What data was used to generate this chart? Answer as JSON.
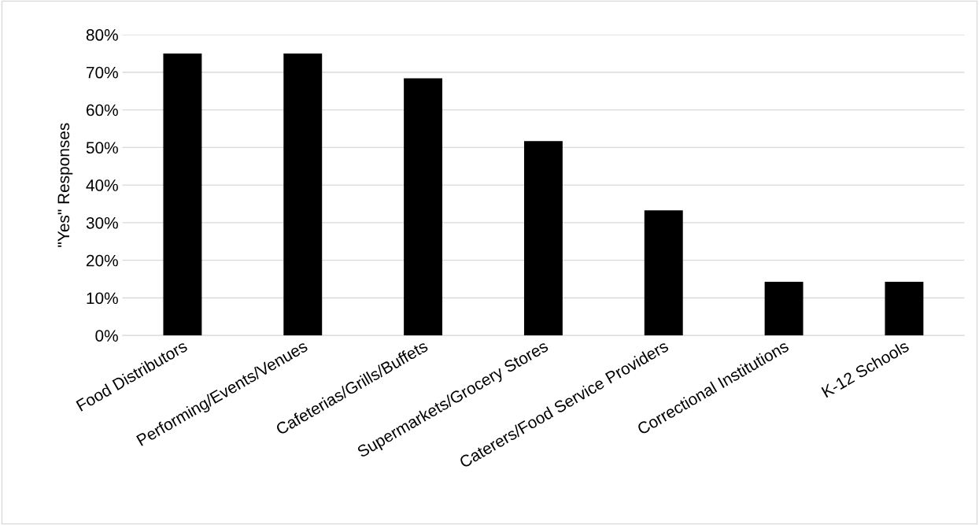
{
  "chart_data": {
    "type": "bar",
    "ylabel": "\"Yes\" Responses",
    "categories": [
      "Food Distributors",
      "Performing/Events/Venues",
      "Cafeterias/Grills/Buffets",
      "Supermarkets/Grocery Stores",
      "Caterers/Food Service Providers",
      "Correctional Institutions",
      "K-12 Schools"
    ],
    "values": [
      75,
      75,
      68.4,
      51.7,
      33.3,
      14.3,
      14.3
    ],
    "color": "#000000",
    "ylim": [
      0,
      80
    ],
    "yticks": [
      {
        "value": 0,
        "label": "0%"
      },
      {
        "value": 10,
        "label": "10%"
      },
      {
        "value": 20,
        "label": "20%"
      },
      {
        "value": 30,
        "label": "30%"
      },
      {
        "value": 40,
        "label": "40%"
      },
      {
        "value": 50,
        "label": "50%"
      },
      {
        "value": 60,
        "label": "60%"
      },
      {
        "value": 70,
        "label": "70%"
      },
      {
        "value": 80,
        "label": "80%"
      }
    ],
    "grid": "y"
  }
}
